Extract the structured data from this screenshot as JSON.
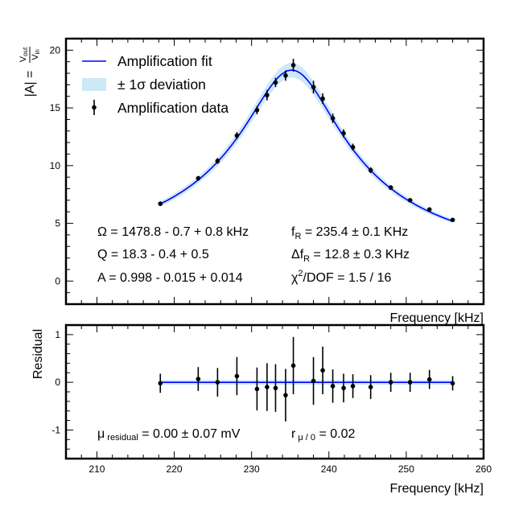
{
  "chart_data": [
    {
      "type": "line",
      "panel": "main",
      "ylabel": "|A| = V_out / V_in",
      "ylabel_parts": {
        "lhs": "|A| = ",
        "num": "V",
        "num_sub": "out",
        "den": "V",
        "den_sub": "in"
      },
      "xlabel": "Frequency [kHz]",
      "xlim": [
        206,
        260
      ],
      "ylim": [
        -2,
        21
      ],
      "yticks": [
        "0",
        "5",
        "10",
        "15",
        "20"
      ],
      "legend_position": "top-left",
      "legend": {
        "fit": "Amplification fit",
        "band": "± 1σ deviation",
        "data": "Amplification data"
      },
      "colors": {
        "fit": "#0000ff",
        "band": "#cde8f6",
        "data": "#000000"
      },
      "fit_params": {
        "Omega": 1478.8,
        "Q": 18.3,
        "A": 0.998
      },
      "data": {
        "x": [
          218.2,
          223.1,
          225.6,
          228.1,
          230.7,
          232.0,
          233.1,
          234.4,
          235.4,
          238.0,
          239.2,
          240.5,
          241.9,
          243.1,
          245.4,
          248.0,
          250.5,
          253.0,
          256.0
        ],
        "y": [
          6.7,
          8.9,
          10.4,
          12.6,
          14.8,
          16.1,
          17.2,
          17.8,
          18.7,
          16.8,
          15.8,
          14.1,
          12.8,
          11.6,
          9.6,
          8.1,
          7.0,
          6.2,
          5.3
        ],
        "yerr": [
          0.2,
          0.2,
          0.25,
          0.3,
          0.35,
          0.45,
          0.4,
          0.45,
          0.55,
          0.55,
          0.45,
          0.4,
          0.35,
          0.3,
          0.25,
          0.2,
          0.15,
          0.15,
          0.15
        ]
      },
      "annotations": {
        "omega": "Ω = 1478.8 - 0.7 + 0.8 kHz",
        "q": "Q = 18.3 - 0.4 + 0.5",
        "a": "A = 0.998 - 0.015 + 0.014",
        "fr": {
          "pre": "f",
          "sub": "R",
          "post": " = 235.4 ± 0.1 KHz"
        },
        "dfr": {
          "pre": "Δf",
          "sub": "R",
          "post": " = 12.8 ± 0.3 KHz"
        },
        "chi": {
          "pre": "χ",
          "sup": "2",
          "post": "/DOF = 1.5 / 16"
        }
      }
    },
    {
      "type": "scatter",
      "panel": "residual",
      "ylabel": "Residual",
      "xlabel": "Frequency [kHz]",
      "xlim": [
        206,
        260
      ],
      "ylim": [
        -1.6,
        1.2
      ],
      "xticks": [
        "210",
        "220",
        "230",
        "240",
        "250",
        "260"
      ],
      "yticks": [
        "-1",
        "0",
        "1"
      ],
      "x": [
        218.2,
        223.1,
        225.6,
        228.1,
        230.7,
        232.0,
        233.1,
        234.4,
        235.4,
        238.0,
        239.2,
        240.5,
        241.9,
        243.1,
        245.4,
        248.0,
        250.5,
        253.0,
        256.0
      ],
      "y": [
        -0.02,
        0.07,
        0.0,
        0.13,
        -0.14,
        -0.1,
        -0.12,
        -0.27,
        0.35,
        0.03,
        0.25,
        -0.08,
        -0.12,
        -0.08,
        -0.1,
        0.0,
        0.0,
        0.06,
        -0.02
      ],
      "yerr": [
        0.2,
        0.25,
        0.3,
        0.4,
        0.45,
        0.5,
        0.5,
        0.55,
        0.6,
        0.5,
        0.5,
        0.35,
        0.3,
        0.25,
        0.25,
        0.2,
        0.2,
        0.2,
        0.15
      ],
      "band_halfwidth": 0.05,
      "annotations": {
        "mu": {
          "pre": "μ",
          "sub": " residual",
          "post": " = 0.00 ± 0.07 mV"
        },
        "r": {
          "pre": "r",
          "sub": " μ / 0",
          "post": " = 0.02"
        }
      }
    }
  ]
}
